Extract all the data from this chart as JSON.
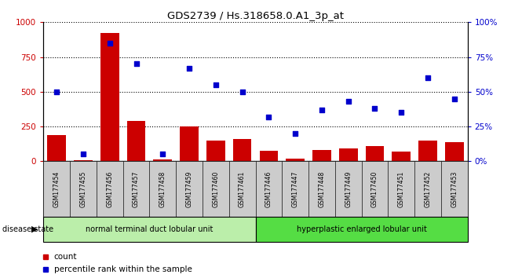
{
  "title": "GDS2739 / Hs.318658.0.A1_3p_at",
  "categories": [
    "GSM177454",
    "GSM177455",
    "GSM177456",
    "GSM177457",
    "GSM177458",
    "GSM177459",
    "GSM177460",
    "GSM177461",
    "GSM177446",
    "GSM177447",
    "GSM177448",
    "GSM177449",
    "GSM177450",
    "GSM177451",
    "GSM177452",
    "GSM177453"
  ],
  "counts": [
    190,
    10,
    920,
    290,
    15,
    250,
    150,
    160,
    75,
    20,
    80,
    90,
    110,
    70,
    150,
    140
  ],
  "percentiles": [
    50,
    5,
    85,
    70,
    5,
    67,
    55,
    50,
    32,
    20,
    37,
    43,
    38,
    35,
    60,
    45
  ],
  "group1_label": "normal terminal duct lobular unit",
  "group2_label": "hyperplastic enlarged lobular unit",
  "group1_count": 8,
  "group2_count": 8,
  "bar_color": "#cc0000",
  "scatter_color": "#0000cc",
  "group1_bg": "#bbeeaa",
  "group2_bg": "#55dd44",
  "tick_bg": "#cccccc",
  "ylim_left": [
    0,
    1000
  ],
  "ylim_right": [
    0,
    100
  ],
  "yticks_left": [
    0,
    250,
    500,
    750,
    1000
  ],
  "yticks_right": [
    0,
    25,
    50,
    75,
    100
  ],
  "legend_count_label": "count",
  "legend_pct_label": "percentile rank within the sample"
}
